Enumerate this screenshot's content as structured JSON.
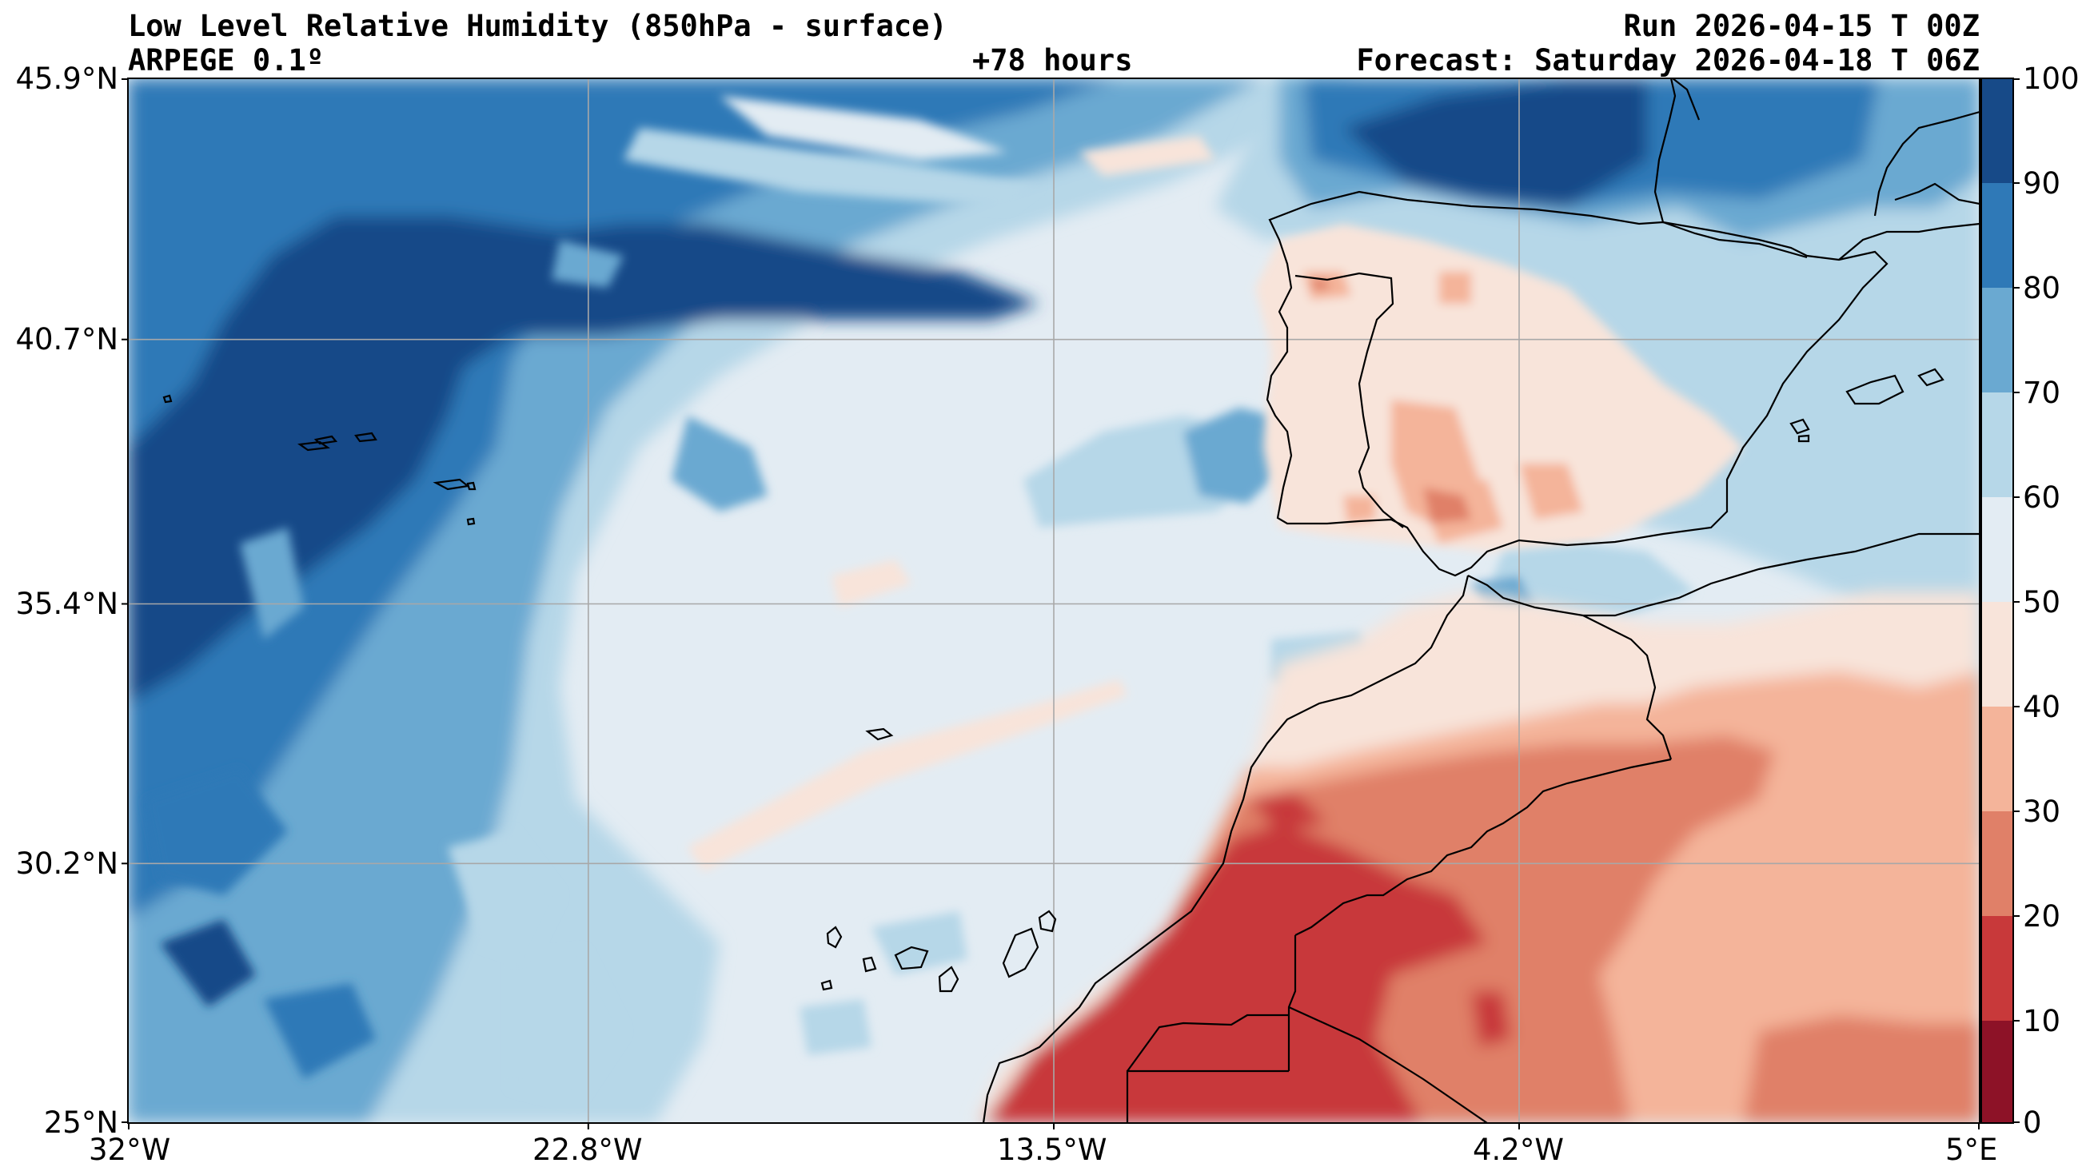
{
  "header": {
    "title": "Low Level Relative Humidity (850hPa - surface)",
    "model": "ARPEGE 0.1º",
    "lead": "+78 hours",
    "run": "Run 2026-04-15 T 00Z",
    "forecast": "Forecast: Saturday 2026-04-18 T 06Z"
  },
  "map": {
    "lat_labels": [
      "45.9°N",
      "40.7°N",
      "35.4°N",
      "30.2°N",
      "25°N"
    ],
    "lon_labels": [
      "32°W",
      "22.8°W",
      "13.5°W",
      "4.2°W",
      "5°E"
    ],
    "lat_range": [
      25.0,
      45.9
    ],
    "lon_range": [
      -32.0,
      5.0
    ]
  },
  "colorbar": {
    "ticks": [
      "100",
      "90",
      "80",
      "70",
      "60",
      "50",
      "40",
      "30",
      "20",
      "10",
      "0"
    ],
    "colors": [
      "#174a88",
      "#2f79b7",
      "#6aa9d1",
      "#b6d7e8",
      "#e3ecf3",
      "#f8e4da",
      "#f4b49a",
      "#e08068",
      "#c8393a",
      "#8d1227"
    ]
  }
}
